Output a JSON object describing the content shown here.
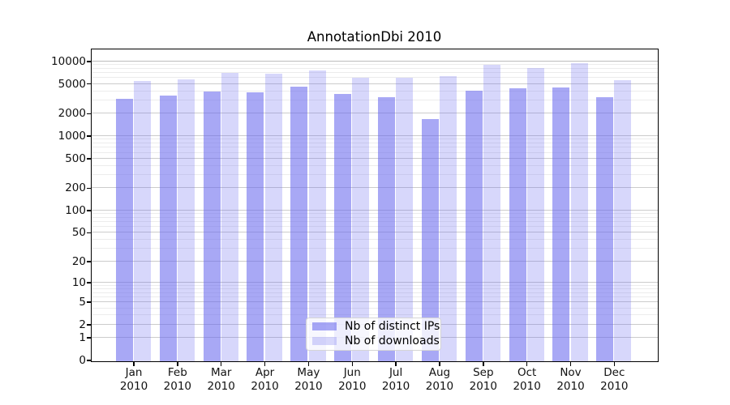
{
  "title": "AnnotationDbi 2010",
  "chart_data": {
    "type": "bar",
    "title": "AnnotationDbi 2010",
    "categories": [
      "Jan 2010",
      "Feb 2010",
      "Mar 2010",
      "Apr 2010",
      "May 2010",
      "Jun 2010",
      "Jul 2010",
      "Aug 2010",
      "Sep 2010",
      "Oct 2010",
      "Nov 2010",
      "Dec 2010"
    ],
    "series": [
      {
        "name": "Nb of distinct IPs",
        "values": [
          3200,
          3500,
          4000,
          3900,
          4650,
          3700,
          3400,
          1700,
          4100,
          4470,
          4580,
          3400
        ],
        "color_hex_on_white": "#a6a6f2",
        "color_css": "rgba(102,102,238,0.57)"
      },
      {
        "name": "Nb of downloads",
        "values": [
          5600,
          5800,
          7200,
          6900,
          7650,
          6200,
          6100,
          6400,
          9200,
          8200,
          9700,
          5700
        ],
        "color_hex_on_white": "#d6d6f7",
        "color_css": "rgba(102,102,238,0.26)"
      }
    ],
    "xlabel": "",
    "ylabel": "",
    "yscale": "log10(value+1)",
    "ylim": [
      0,
      14500
    ],
    "y_tick_labels": [
      "10000",
      "5000",
      "2000",
      "1000",
      "500",
      "200",
      "100",
      "50",
      "20",
      "10",
      "5",
      "2",
      "1",
      "0"
    ],
    "y_tick_values": [
      10000,
      5000,
      2000,
      1000,
      500,
      200,
      100,
      50,
      20,
      10,
      5,
      2,
      1,
      0
    ],
    "minor_grid_multiples": [
      3,
      4,
      6,
      7,
      8,
      9
    ],
    "grid": true,
    "grid_major_color": "#cccccc",
    "grid_top_color": "#bcbcbc",
    "grid_minor_color": "#ececec",
    "legend_position": "lower center",
    "frame_color": "#000000"
  }
}
